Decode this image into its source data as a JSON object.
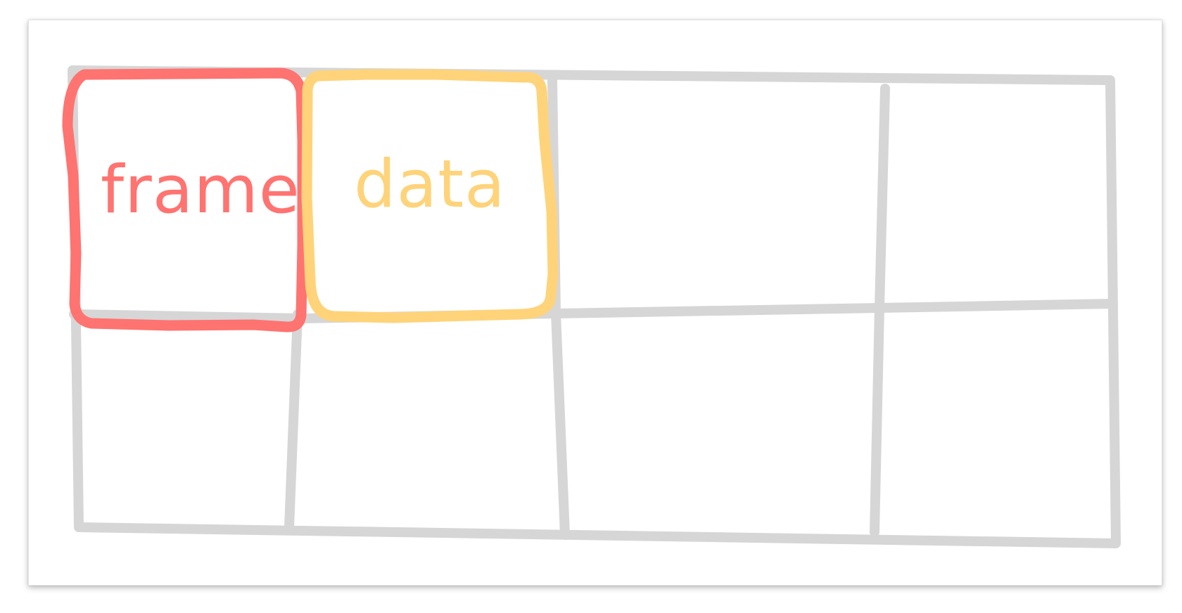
{
  "labels": {
    "frame": "frame",
    "data": "data"
  },
  "colors": {
    "grid": "#d6d6d6",
    "frame": "#ff7370",
    "data": "#ffd37a",
    "background": "#ffffff"
  }
}
